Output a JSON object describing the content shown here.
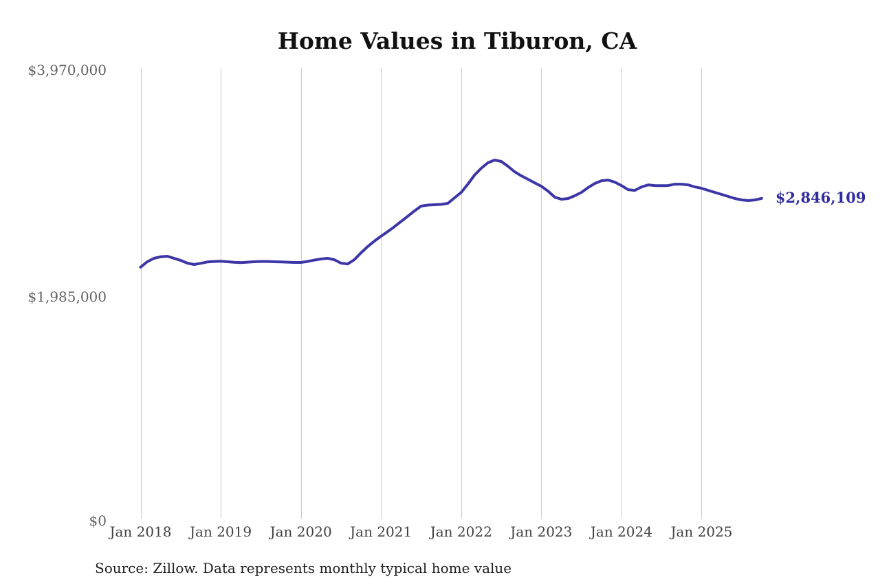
{
  "source_note": "Source: Zillow. Data represents monthly typical home value",
  "chart_data": {
    "type": "line",
    "title": "Home Values in Tiburon, CA",
    "series_name": "Monthly typical home value",
    "unit": "USD",
    "x_start": "2018-01",
    "x_end": "2025-10",
    "x_interval": "month",
    "values": [
      2244000,
      2292000,
      2322000,
      2335000,
      2340000,
      2322000,
      2304000,
      2280000,
      2268000,
      2278000,
      2290000,
      2294000,
      2296000,
      2292000,
      2287000,
      2284000,
      2288000,
      2292000,
      2294000,
      2294000,
      2292000,
      2290000,
      2288000,
      2286000,
      2286000,
      2294000,
      2306000,
      2316000,
      2322000,
      2310000,
      2280000,
      2272000,
      2310000,
      2370000,
      2425000,
      2472000,
      2515000,
      2556000,
      2598000,
      2645000,
      2690000,
      2736000,
      2779000,
      2788000,
      2791000,
      2794000,
      2803000,
      2851000,
      2899000,
      2971000,
      3050000,
      3110000,
      3158000,
      3182000,
      3170000,
      3128000,
      3080000,
      3044000,
      3014000,
      2983000,
      2953000,
      2911000,
      2857000,
      2839000,
      2845000,
      2869000,
      2899000,
      2941000,
      2977000,
      3001000,
      3007000,
      2989000,
      2959000,
      2923000,
      2917000,
      2947000,
      2965000,
      2959000,
      2958000,
      2959000,
      2971000,
      2971000,
      2965000,
      2947000,
      2935000,
      2917000,
      2899000,
      2881000,
      2863000,
      2845000,
      2833000,
      2827000,
      2833000,
      2846109
    ],
    "end_label": "$2,846,109",
    "ylim": [
      0,
      3970000
    ],
    "yticks": [
      {
        "value": 3970000,
        "label": "$3,970,000"
      },
      {
        "value": 1985000,
        "label": "$1,985,000"
      },
      {
        "value": 0,
        "label": "$0"
      }
    ],
    "xticks": [
      {
        "month_index": 0,
        "label": "Jan 2018"
      },
      {
        "month_index": 12,
        "label": "Jan 2019"
      },
      {
        "month_index": 24,
        "label": "Jan 2020"
      },
      {
        "month_index": 36,
        "label": "Jan 2021"
      },
      {
        "month_index": 48,
        "label": "Jan 2022"
      },
      {
        "month_index": 60,
        "label": "Jan 2023"
      },
      {
        "month_index": 72,
        "label": "Jan 2024"
      },
      {
        "month_index": 84,
        "label": "Jan 2025"
      }
    ],
    "line_color": "#3c36a6",
    "grid_color": "#cccccc",
    "grid": "vertical-only",
    "legend": "none"
  }
}
